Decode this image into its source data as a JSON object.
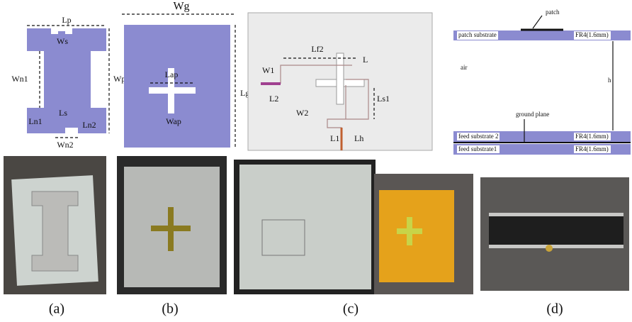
{
  "labels_a": {
    "lp": "Lp",
    "ws": "Ws",
    "wn1": "Wn1",
    "wp": "Wp",
    "ln1": "Ln1",
    "ls": "Ls",
    "ln2": "Ln2",
    "wn2": "Wn2"
  },
  "labels_b": {
    "wg": "Wg",
    "lap": "Lap",
    "wap": "Wap",
    "lg": "Lg"
  },
  "labels_c": {
    "w1": "W1",
    "lf2": "Lf2",
    "l": "L",
    "l2": "L2",
    "w2": "W2",
    "ls1": "Ls1",
    "l1": "L1",
    "lh": "Lh"
  },
  "labels_d": {
    "patch": "patch",
    "patch_substrate": "patch substrate",
    "fr4_top": "FR4(1.6mm)",
    "air": "air",
    "h": "h",
    "ground_plane": "ground plane",
    "feed_substrate_2": "feed substrate 2",
    "fr4_mid": "FR4(1.6mm)",
    "feed_substrate_1": "feed substrate1",
    "fr4_bottom": "FR4(1.6mm)"
  },
  "captions": [
    "(a)",
    "(b)",
    "(c)",
    "(d)"
  ]
}
